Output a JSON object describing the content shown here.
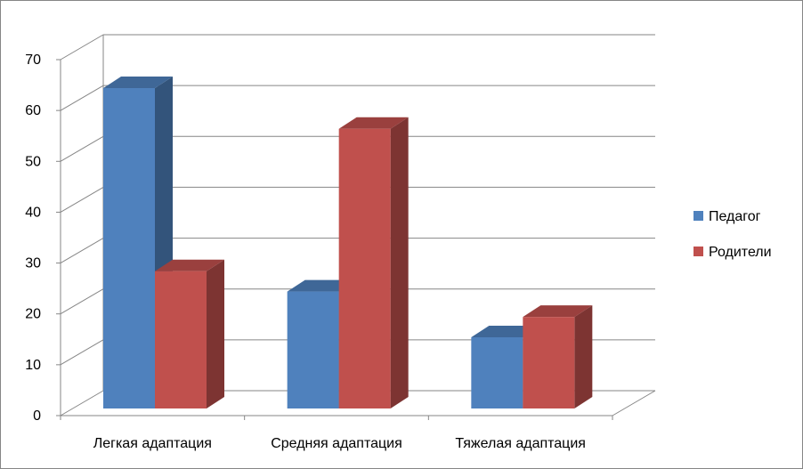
{
  "chart_data": {
    "type": "bar",
    "title": "",
    "xlabel": "",
    "ylabel": "",
    "categories": [
      "Легкая адаптация",
      "Средняя адаптация",
      "Тяжелая адаптация"
    ],
    "series": [
      {
        "name": "Педагог",
        "values": [
          63,
          23,
          14
        ]
      },
      {
        "name": "Родители",
        "values": [
          27,
          55,
          18
        ]
      }
    ],
    "ylim": [
      0,
      70
    ],
    "yticks": [
      "0",
      "10",
      "20",
      "30",
      "40",
      "50",
      "60",
      "70"
    ],
    "grid": true,
    "legend_position": "right",
    "colors": {
      "Педагог": "#4f81bd",
      "Родители": "#c0504d"
    }
  }
}
